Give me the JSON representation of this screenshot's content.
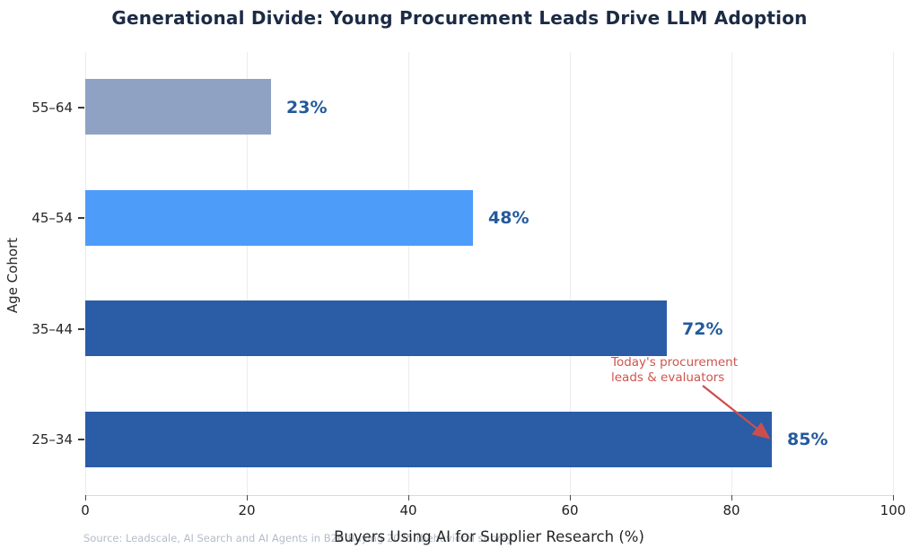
{
  "title": "Generational Divide: Young Procurement Leads Drive LLM Adoption",
  "source_note": "Source: Leadscale, AI Search and AI Agents in B2B Buying 2025 (behavioral survey)",
  "colors": {
    "title_text": "#1c2b45",
    "value_label_text": "#235a9c",
    "annotation_text": "#cf544e",
    "arrow": "#c94f4e",
    "gridline": "#ececf1",
    "axis_line": "#d9dade",
    "tick_text": "#1f1f1f",
    "source_text": "#b2bcca"
  },
  "chart_data": {
    "type": "bar",
    "orientation": "horizontal",
    "title": "Generational Divide: Young Procurement Leads Drive LLM Adoption",
    "xlabel": "Buyers Using AI for Supplier Research (%)",
    "ylabel": "Age Cohort",
    "categories": [
      "55–64",
      "45–54",
      "35–44",
      "25–34"
    ],
    "values": [
      23,
      48,
      72,
      85
    ],
    "value_labels": [
      "23%",
      "48%",
      "72%",
      "85%"
    ],
    "bar_colors": [
      "#8fa2c4",
      "#4d9cfa",
      "#2b5ca6",
      "#2b5ca6"
    ],
    "xlim": [
      0,
      100
    ],
    "xticks": [
      0,
      20,
      40,
      60,
      80,
      100
    ],
    "grid": "vertical-only",
    "legend": "none",
    "annotation": {
      "line1": "Today's procurement",
      "line2": "leads & evaluators",
      "target_category": "25–34",
      "target_value": 85
    }
  }
}
